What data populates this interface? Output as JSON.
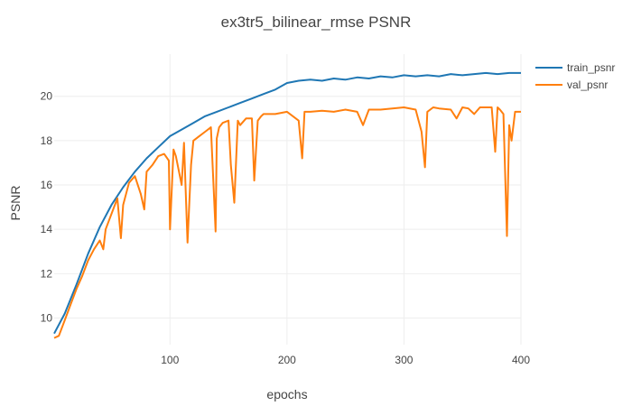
{
  "chart_data": {
    "type": "line",
    "title": "ex3tr5_bilinear_rmse PSNR",
    "xlabel": "epochs",
    "ylabel": "PSNR",
    "xlim": [
      1,
      400
    ],
    "ylim": [
      8.8,
      21.9
    ],
    "xticks": [
      100,
      200,
      300,
      400
    ],
    "yticks": [
      10,
      12,
      14,
      16,
      18,
      20
    ],
    "grid": true,
    "legend_position": "top-right",
    "series": [
      {
        "name": "train_psnr",
        "color": "#1f77b4",
        "x": [
          1,
          10,
          20,
          30,
          40,
          50,
          60,
          70,
          80,
          90,
          100,
          110,
          120,
          130,
          140,
          150,
          160,
          170,
          180,
          190,
          200,
          210,
          220,
          230,
          240,
          250,
          260,
          270,
          280,
          290,
          300,
          310,
          320,
          330,
          340,
          350,
          360,
          370,
          380,
          390,
          400
        ],
        "values": [
          9.3,
          10.2,
          11.5,
          12.9,
          14.1,
          15.1,
          15.9,
          16.6,
          17.2,
          17.7,
          18.2,
          18.5,
          18.8,
          19.1,
          19.3,
          19.5,
          19.7,
          19.9,
          20.1,
          20.3,
          20.6,
          20.7,
          20.75,
          20.7,
          20.8,
          20.75,
          20.85,
          20.8,
          20.9,
          20.85,
          20.95,
          20.9,
          20.95,
          20.9,
          21.0,
          20.95,
          21.0,
          21.05,
          21.0,
          21.05,
          21.05
        ]
      },
      {
        "name": "val_psnr",
        "color": "#ff7f0e",
        "x": [
          1,
          5,
          10,
          15,
          20,
          25,
          30,
          35,
          40,
          43,
          45,
          50,
          55,
          58,
          60,
          65,
          70,
          75,
          78,
          80,
          85,
          90,
          95,
          99,
          100,
          103,
          105,
          110,
          112,
          115,
          118,
          120,
          125,
          130,
          135,
          139,
          140,
          142,
          145,
          150,
          152,
          155,
          158,
          160,
          165,
          170,
          172,
          175,
          178,
          180,
          190,
          200,
          210,
          213,
          215,
          220,
          230,
          240,
          250,
          260,
          265,
          270,
          280,
          290,
          300,
          310,
          315,
          318,
          320,
          325,
          330,
          340,
          345,
          350,
          355,
          360,
          365,
          370,
          375,
          378,
          380,
          382,
          385,
          388,
          390,
          392,
          395,
          400
        ],
        "values": [
          9.1,
          9.2,
          9.9,
          10.6,
          11.3,
          11.9,
          12.6,
          13.1,
          13.5,
          13.1,
          14.0,
          14.7,
          15.4,
          13.6,
          15.1,
          16.1,
          16.4,
          15.6,
          14.9,
          16.6,
          16.9,
          17.3,
          17.4,
          17.1,
          14.0,
          17.6,
          17.3,
          16.0,
          17.9,
          13.4,
          16.9,
          18.0,
          18.2,
          18.4,
          18.6,
          13.9,
          18.1,
          18.6,
          18.8,
          18.9,
          16.9,
          15.2,
          18.9,
          18.7,
          19.0,
          19.0,
          16.2,
          18.9,
          19.1,
          19.2,
          19.2,
          19.3,
          18.9,
          17.2,
          19.3,
          19.3,
          19.35,
          19.3,
          19.4,
          19.3,
          18.7,
          19.4,
          19.4,
          19.45,
          19.5,
          19.4,
          18.4,
          16.8,
          19.3,
          19.5,
          19.45,
          19.4,
          19.0,
          19.5,
          19.45,
          19.2,
          19.5,
          19.5,
          19.5,
          17.5,
          19.5,
          19.4,
          19.2,
          13.7,
          18.7,
          18.0,
          19.3,
          19.3
        ]
      }
    ]
  }
}
